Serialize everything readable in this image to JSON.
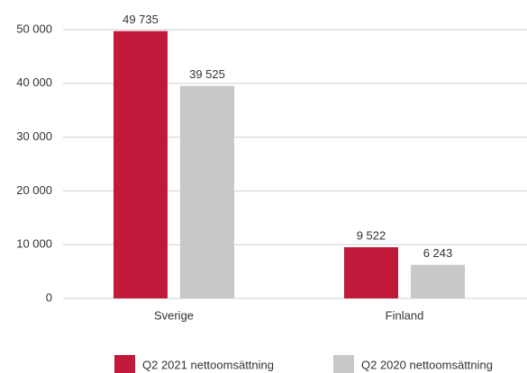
{
  "chart_data": {
    "type": "bar",
    "categories": [
      "Sverige",
      "Finland"
    ],
    "series": [
      {
        "name": "Q2 2021 nettoomsättning",
        "color": "#c0193a",
        "values": [
          49735,
          9522
        ],
        "value_labels": [
          "49 735",
          "9 522"
        ]
      },
      {
        "name": "Q2 2020 nettoomsättning",
        "color": "#c8c8c8",
        "values": [
          39525,
          6243
        ],
        "value_labels": [
          "39 525",
          "6 243"
        ]
      }
    ],
    "ylim": [
      0,
      50000
    ],
    "yticks": [
      0,
      {
        "value": 10000,
        "label": "10 000"
      },
      {
        "value": 20000,
        "label": "20 000"
      },
      {
        "value": 30000,
        "label": "30 000"
      },
      {
        "value": 40000,
        "label": "40 000"
      },
      {
        "value": 50000,
        "label": "50 000"
      }
    ],
    "grid": true,
    "legend": "bottom"
  }
}
